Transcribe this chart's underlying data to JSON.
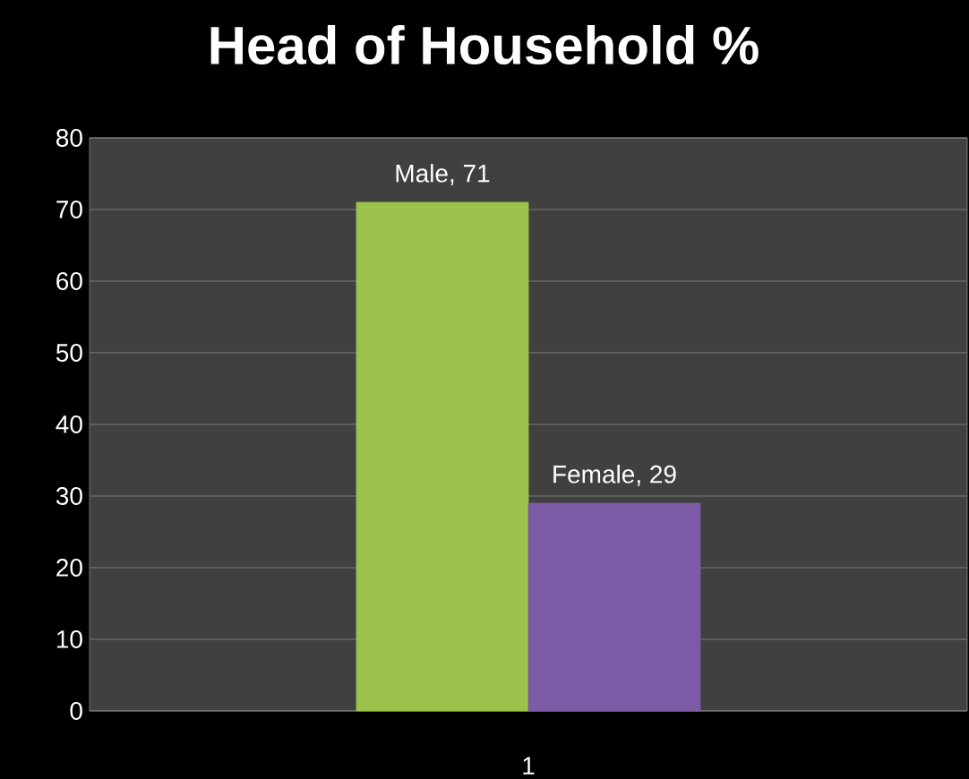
{
  "chart_data": {
    "type": "bar",
    "title": "Head of Household %",
    "categories": [
      "1"
    ],
    "series": [
      {
        "color": "#9bc34c",
        "values": [
          71
        ],
        "value_labels": [
          "Male, 71"
        ]
      },
      {
        "color": "#7b5aa6",
        "values": [
          29
        ],
        "value_labels": [
          "Female, 29"
        ]
      }
    ],
    "ylim": [
      0,
      80
    ],
    "yticks": [
      0,
      10,
      20,
      30,
      40,
      50,
      60,
      70,
      80
    ],
    "grid": "y"
  }
}
